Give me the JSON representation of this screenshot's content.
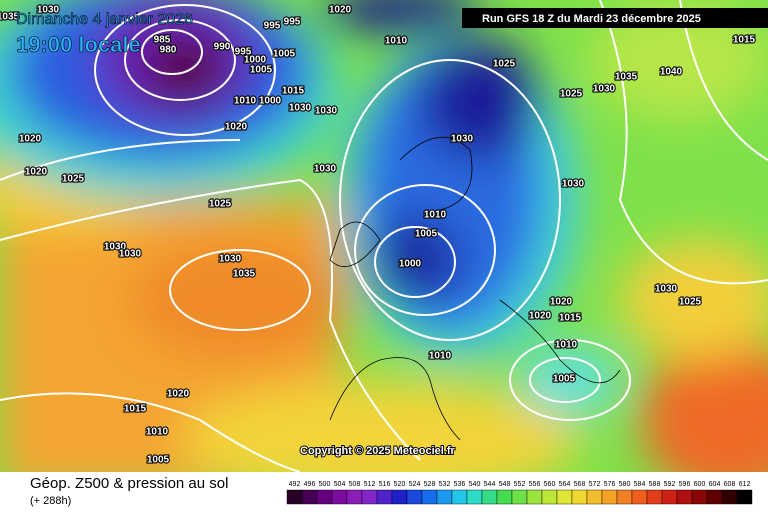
{
  "header": {
    "date": "Dimanche 4 janvier 2026",
    "time": "19:00 locale",
    "run": "Run GFS 18 Z du Mardi 23 décembre 2025"
  },
  "footer": {
    "title": "Géop. Z500 & pression au sol",
    "lead": "(+ 288h)",
    "copyright": "Copyright © 2025 Meteociel.fr"
  },
  "legend": {
    "values": [
      492,
      496,
      500,
      504,
      508,
      512,
      516,
      520,
      524,
      528,
      532,
      536,
      540,
      544,
      548,
      552,
      556,
      560,
      564,
      568,
      572,
      576,
      580,
      584,
      588,
      592,
      596,
      600,
      604,
      608,
      612
    ]
  },
  "isobars": [
    1030,
    1035,
    985,
    980,
    990,
    995,
    995,
    995,
    1000,
    1005,
    1005,
    1020,
    1010,
    1025,
    1025,
    1030,
    1035,
    1040,
    1015,
    1010,
    1000,
    1015,
    1030,
    1030,
    1020,
    1020,
    1020,
    1025,
    1030,
    1030,
    1030,
    1025,
    1010,
    1005,
    1000,
    1030,
    1030,
    1030,
    1035,
    1020,
    1020,
    1015,
    1030,
    1025,
    1010,
    1010,
    1005,
    1020,
    1015,
    1010,
    1005
  ]
}
